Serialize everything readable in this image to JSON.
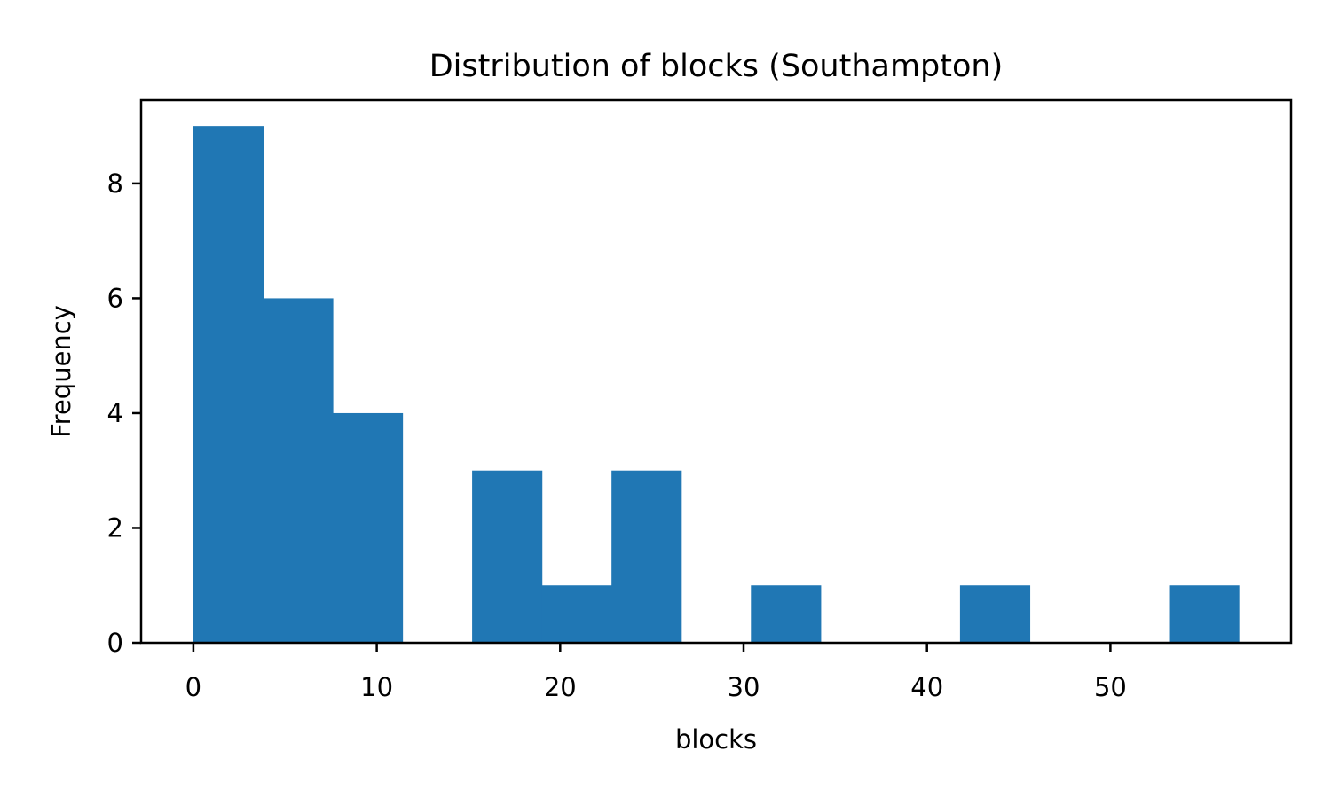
{
  "chart_data": {
    "type": "bar",
    "subtype": "histogram",
    "title": "Distribution of blocks (Southampton)",
    "xlabel": "blocks",
    "ylabel": "Frequency",
    "bins": [
      {
        "start": 0.0,
        "end": 3.8,
        "count": 9
      },
      {
        "start": 3.8,
        "end": 7.6,
        "count": 6
      },
      {
        "start": 7.6,
        "end": 11.4,
        "count": 4
      },
      {
        "start": 11.4,
        "end": 15.2,
        "count": 0
      },
      {
        "start": 15.2,
        "end": 19.0,
        "count": 3
      },
      {
        "start": 19.0,
        "end": 22.8,
        "count": 1
      },
      {
        "start": 22.8,
        "end": 26.6,
        "count": 3
      },
      {
        "start": 26.6,
        "end": 30.4,
        "count": 0
      },
      {
        "start": 30.4,
        "end": 34.2,
        "count": 1
      },
      {
        "start": 34.2,
        "end": 38.0,
        "count": 0
      },
      {
        "start": 38.0,
        "end": 41.8,
        "count": 0
      },
      {
        "start": 41.8,
        "end": 45.6,
        "count": 1
      },
      {
        "start": 45.6,
        "end": 49.4,
        "count": 0
      },
      {
        "start": 49.4,
        "end": 53.2,
        "count": 0
      },
      {
        "start": 53.2,
        "end": 57.0,
        "count": 1
      }
    ],
    "xlim": [
      -2.85,
      59.85
    ],
    "ylim": [
      0,
      9.45
    ],
    "xticks": [
      0,
      10,
      20,
      30,
      40,
      50
    ],
    "yticks": [
      0,
      2,
      4,
      6,
      8
    ],
    "bar_color": "#2077b4",
    "grid": false,
    "legend": "none"
  }
}
